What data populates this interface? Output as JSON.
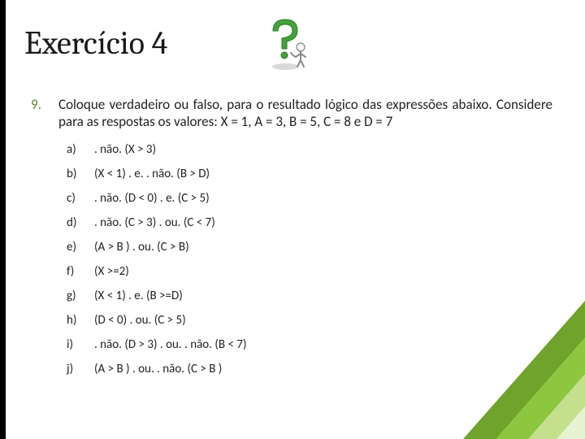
{
  "title": "Exercício 4",
  "question": {
    "number": "9.",
    "text": "Coloque verdadeiro ou falso, para o resultado lógico das expressões abaixo. Considere para as respostas os valores:  X = 1, A = 3, B = 5,    C = 8 e D = 7"
  },
  "items": [
    {
      "letter": "a)",
      "expr": ". não. (X > 3)"
    },
    {
      "letter": "b)",
      "expr": "(X < 1) . e. . não. (B > D)"
    },
    {
      "letter": "c)",
      "expr": ". não. (D < 0) . e. (C > 5)"
    },
    {
      "letter": "d)",
      "expr": ". não. (C > 3) . ou. (C < 7)"
    },
    {
      "letter": "e)",
      "expr": "(A > B ) . ou. (C > B)"
    },
    {
      "letter": "f)",
      "expr": "(X >=2)"
    },
    {
      "letter": "g)",
      "expr": "(X < 1) . e. (B >=D)"
    },
    {
      "letter": "h)",
      "expr": "(D < 0) . ou. (C > 5)"
    },
    {
      "letter": "i)",
      "expr": ". não. (D > 3) . ou. . não. (B < 7)"
    },
    {
      "letter": "j)",
      "expr": "(A > B ) . ou. . não. (C > B )"
    }
  ],
  "colors": {
    "accent_green": "#5b8c1f",
    "tri1": "#6fa32b",
    "tri2": "#8dc63f",
    "tri3": "#c5e08c",
    "tri4": "#e8f3d3",
    "left_bar": "#000000",
    "text": "#222222"
  }
}
